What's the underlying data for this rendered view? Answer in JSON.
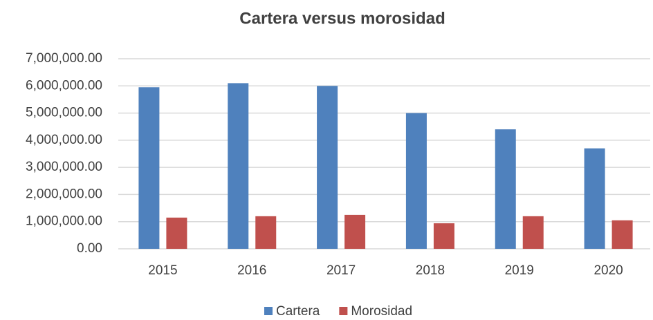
{
  "chart_data": {
    "type": "bar",
    "title": "Cartera versus morosidad",
    "categories": [
      "2015",
      "2016",
      "2017",
      "2018",
      "2019",
      "2020"
    ],
    "series": [
      {
        "name": "Cartera",
        "color": "#4f81bd",
        "values": [
          5950000,
          6100000,
          6000000,
          5000000,
          4400000,
          3700000
        ]
      },
      {
        "name": "Morosidad",
        "color": "#c0504d",
        "values": [
          1150000,
          1200000,
          1250000,
          940000,
          1200000,
          1050000
        ]
      }
    ],
    "ylim": [
      0,
      7000000
    ],
    "yticks": [
      {
        "value": 0,
        "label": "0.00"
      },
      {
        "value": 1000000,
        "label": "1,000,000.00"
      },
      {
        "value": 2000000,
        "label": "2,000,000.00"
      },
      {
        "value": 3000000,
        "label": "3,000,000.00"
      },
      {
        "value": 4000000,
        "label": "4,000,000.00"
      },
      {
        "value": 5000000,
        "label": "5,000,000.00"
      },
      {
        "value": 6000000,
        "label": "6,000,000.00"
      },
      {
        "value": 7000000,
        "label": "7,000,000.00"
      }
    ],
    "grid": true,
    "legend": "bottom"
  }
}
